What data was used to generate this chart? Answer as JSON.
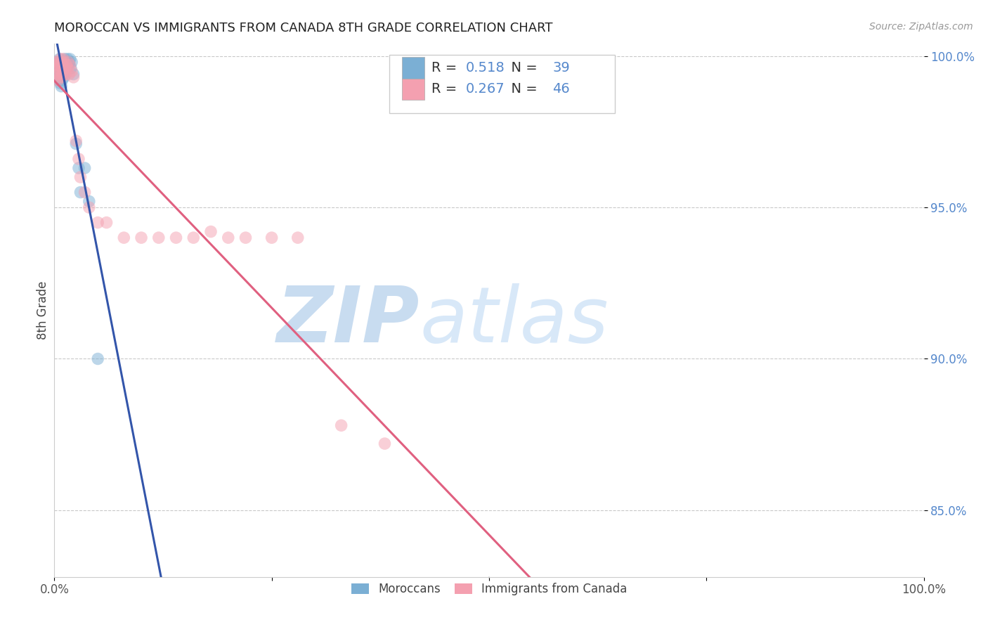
{
  "title": "MOROCCAN VS IMMIGRANTS FROM CANADA 8TH GRADE CORRELATION CHART",
  "source": "Source: ZipAtlas.com",
  "ylabel": "8th Grade",
  "xlim": [
    0.0,
    1.0
  ],
  "ylim": [
    0.828,
    1.004
  ],
  "yticks": [
    0.85,
    0.9,
    0.95,
    1.0
  ],
  "ytick_labels": [
    "85.0%",
    "90.0%",
    "95.0%",
    "100.0%"
  ],
  "xticks": [
    0.0,
    0.25,
    0.5,
    0.75,
    1.0
  ],
  "xtick_labels": [
    "0.0%",
    "",
    "",
    "",
    "100.0%"
  ],
  "blue_R": 0.518,
  "blue_N": 39,
  "pink_R": 0.267,
  "pink_N": 46,
  "blue_color": "#7BAFD4",
  "pink_color": "#F4A0B0",
  "blue_line_color": "#3355AA",
  "pink_line_color": "#E06080",
  "watermark_zip": "ZIP",
  "watermark_atlas": "atlas",
  "legend_label_blue": "Moroccans",
  "legend_label_pink": "Immigrants from Canada",
  "blue_x": [
    0.002,
    0.003,
    0.003,
    0.004,
    0.004,
    0.005,
    0.005,
    0.005,
    0.006,
    0.006,
    0.006,
    0.007,
    0.007,
    0.007,
    0.008,
    0.008,
    0.008,
    0.009,
    0.009,
    0.01,
    0.01,
    0.011,
    0.011,
    0.012,
    0.013,
    0.014,
    0.015,
    0.016,
    0.017,
    0.018,
    0.019,
    0.02,
    0.022,
    0.025,
    0.028,
    0.03,
    0.035,
    0.04,
    0.05
  ],
  "blue_y": [
    0.997,
    0.996,
    0.994,
    0.998,
    0.993,
    0.997,
    0.995,
    0.992,
    0.999,
    0.996,
    0.993,
    0.998,
    0.995,
    0.991,
    0.997,
    0.994,
    0.99,
    0.996,
    0.992,
    0.998,
    0.994,
    0.997,
    0.993,
    0.999,
    0.996,
    0.998,
    0.999,
    0.997,
    0.998,
    0.999,
    0.996,
    0.998,
    0.994,
    0.971,
    0.963,
    0.955,
    0.963,
    0.952,
    0.9
  ],
  "pink_x": [
    0.002,
    0.003,
    0.003,
    0.004,
    0.004,
    0.005,
    0.005,
    0.006,
    0.006,
    0.007,
    0.007,
    0.008,
    0.008,
    0.009,
    0.009,
    0.01,
    0.01,
    0.011,
    0.012,
    0.013,
    0.014,
    0.015,
    0.016,
    0.017,
    0.018,
    0.02,
    0.022,
    0.025,
    0.028,
    0.03,
    0.035,
    0.04,
    0.05,
    0.06,
    0.08,
    0.1,
    0.12,
    0.14,
    0.16,
    0.18,
    0.2,
    0.22,
    0.25,
    0.28,
    0.33,
    0.38
  ],
  "pink_y": [
    0.998,
    0.997,
    0.994,
    0.996,
    0.992,
    0.998,
    0.994,
    0.997,
    0.993,
    0.999,
    0.995,
    0.998,
    0.993,
    0.997,
    0.994,
    0.999,
    0.995,
    0.998,
    0.996,
    0.994,
    0.997,
    0.996,
    0.998,
    0.994,
    0.997,
    0.995,
    0.993,
    0.972,
    0.966,
    0.96,
    0.955,
    0.95,
    0.945,
    0.945,
    0.94,
    0.94,
    0.94,
    0.94,
    0.94,
    0.942,
    0.94,
    0.94,
    0.94,
    0.94,
    0.878,
    0.872
  ]
}
